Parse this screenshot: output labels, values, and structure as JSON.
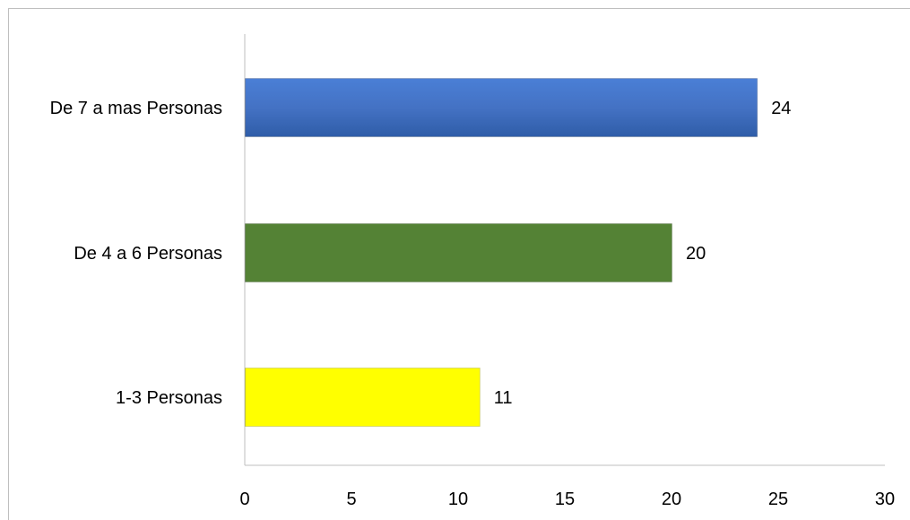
{
  "chart_data": {
    "type": "bar",
    "orientation": "horizontal",
    "categories": [
      "De 7 a mas Personas",
      "De 4 a 6 Personas",
      "1-3 Personas"
    ],
    "values": [
      24,
      20,
      11
    ],
    "data_labels": [
      "24",
      "20",
      "11"
    ],
    "colors": [
      "#4472c4",
      "#548235",
      "#ffff00"
    ],
    "xlim": [
      0,
      30
    ],
    "x_ticks": [
      "0",
      "5",
      "10",
      "15",
      "20",
      "25",
      "30"
    ],
    "title": "",
    "xlabel": "",
    "ylabel": "",
    "grid": false,
    "legend": "none"
  }
}
